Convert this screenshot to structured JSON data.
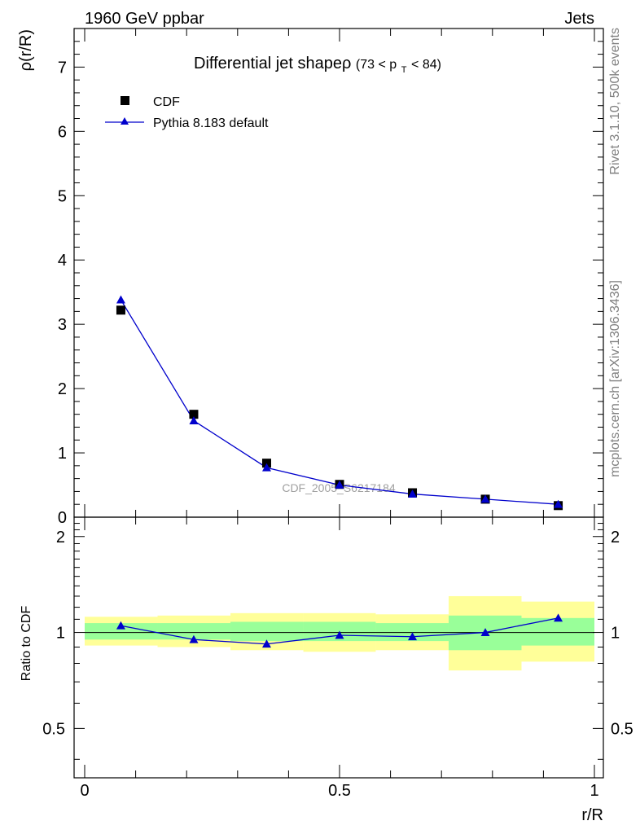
{
  "header": {
    "energy": "1960 GeV ppbar",
    "category": "Jets"
  },
  "side_labels": {
    "rivet": "Rivet 3.1.10,  500k events",
    "mcplots": "mcplots.cern.ch [arXiv:1306.3436]"
  },
  "chart_data": [
    {
      "type": "scatter",
      "title": "Differential jet shapeρ",
      "title_range_prefix": "(73 < p",
      "title_range_sub": "T",
      "title_range_suffix": " < 84)",
      "watermark": "CDF_2005_S6217184",
      "xlabel": "r/R",
      "ylabel": "ρ(r/R)",
      "xlim": [
        0,
        1
      ],
      "ylim": [
        0,
        7.6
      ],
      "yticks": [
        0,
        1,
        2,
        3,
        4,
        5,
        6,
        7
      ],
      "ytick_labels": [
        "0",
        "1",
        "2",
        "3",
        "4",
        "5",
        "6",
        "7"
      ],
      "legend_position": "top-left",
      "series": [
        {
          "name": "CDF",
          "style": "black-square-markers",
          "x": [
            0.071,
            0.214,
            0.357,
            0.5,
            0.643,
            0.786,
            0.929
          ],
          "y": [
            3.22,
            1.6,
            0.84,
            0.51,
            0.38,
            0.28,
            0.18
          ]
        },
        {
          "name": "Pythia 8.183 default",
          "style": "blue-line-triangles",
          "color": "#0000cc",
          "x": [
            0.071,
            0.214,
            0.357,
            0.5,
            0.643,
            0.786,
            0.929
          ],
          "y": [
            3.38,
            1.5,
            0.77,
            0.5,
            0.36,
            0.28,
            0.2
          ]
        }
      ]
    },
    {
      "type": "line",
      "ylabel": "Ratio to CDF",
      "xlabel": "r/R",
      "xlim": [
        0,
        1
      ],
      "ylim": [
        0.35,
        2.3
      ],
      "yscale": "log",
      "yticks": [
        0.5,
        1,
        2
      ],
      "ytick_labels": [
        "0.5",
        "1",
        "2"
      ],
      "xticks": [
        0,
        0.5,
        1
      ],
      "xtick_labels": [
        "0",
        "0.5",
        "1"
      ],
      "reference_line": 1.0,
      "bands": {
        "bin_edges": [
          0,
          0.143,
          0.286,
          0.429,
          0.571,
          0.714,
          0.857,
          1.0
        ],
        "inner_green": [
          [
            0.95,
            1.07
          ],
          [
            0.95,
            1.07
          ],
          [
            0.94,
            1.08
          ],
          [
            0.94,
            1.08
          ],
          [
            0.94,
            1.07
          ],
          [
            0.88,
            1.13
          ],
          [
            0.91,
            1.11
          ]
        ],
        "outer_yellow": [
          [
            0.91,
            1.12
          ],
          [
            0.9,
            1.13
          ],
          [
            0.88,
            1.15
          ],
          [
            0.87,
            1.15
          ],
          [
            0.88,
            1.14
          ],
          [
            0.76,
            1.3
          ],
          [
            0.81,
            1.25
          ]
        ],
        "green_color": "#99ff99",
        "yellow_color": "#ffff99"
      },
      "series": [
        {
          "name": "Pythia 8.183 default / CDF",
          "color": "#0000cc",
          "x": [
            0.071,
            0.214,
            0.357,
            0.5,
            0.643,
            0.786,
            0.929
          ],
          "y": [
            1.05,
            0.95,
            0.92,
            0.98,
            0.97,
            1.0,
            1.11
          ]
        }
      ]
    }
  ]
}
